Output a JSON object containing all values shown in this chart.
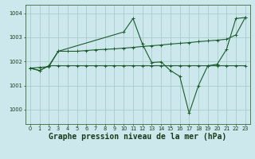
{
  "background_color": "#cce8ec",
  "grid_color": "#aacccc",
  "line_color": "#1a5c2a",
  "title": "Graphe pression niveau de la mer (hPa)",
  "title_fontsize": 7.0,
  "tick_fontsize": 4.8,
  "xlim": [
    -0.5,
    23.5
  ],
  "ylim": [
    999.4,
    1004.35
  ],
  "yticks": [
    1000,
    1001,
    1002,
    1003,
    1004
  ],
  "xticks": [
    0,
    1,
    2,
    3,
    4,
    5,
    6,
    7,
    8,
    9,
    10,
    11,
    12,
    13,
    14,
    15,
    16,
    17,
    18,
    19,
    20,
    21,
    22,
    23
  ],
  "line1_x": [
    0,
    1,
    2,
    3,
    4,
    5,
    6,
    7,
    8,
    9,
    10,
    11,
    12,
    13,
    14,
    15,
    16,
    17,
    18,
    19,
    20,
    21,
    22,
    23
  ],
  "line1_y": [
    1001.72,
    1001.62,
    1001.82,
    1001.82,
    1001.82,
    1001.82,
    1001.82,
    1001.82,
    1001.82,
    1001.82,
    1001.82,
    1001.82,
    1001.82,
    1001.82,
    1001.82,
    1001.82,
    1001.82,
    1001.82,
    1001.82,
    1001.82,
    1001.82,
    1001.82,
    1001.82,
    1001.82
  ],
  "line2_x": [
    0,
    1,
    2,
    3,
    4,
    5,
    6,
    7,
    8,
    9,
    10,
    11,
    12,
    13,
    14,
    15,
    16,
    17,
    18,
    19,
    20,
    21,
    22,
    23
  ],
  "line2_y": [
    1001.72,
    1001.75,
    1001.78,
    1002.42,
    1002.42,
    1002.42,
    1002.45,
    1002.48,
    1002.5,
    1002.52,
    1002.55,
    1002.58,
    1002.62,
    1002.65,
    1002.68,
    1002.72,
    1002.75,
    1002.78,
    1002.82,
    1002.85,
    1002.88,
    1002.92,
    1003.1,
    1003.82
  ],
  "line3_x": [
    0,
    1,
    2,
    3,
    10,
    11,
    12,
    13,
    14,
    15,
    16,
    17,
    18,
    19,
    20,
    21,
    22,
    23
  ],
  "line3_y": [
    1001.72,
    1001.62,
    1001.82,
    1002.42,
    1003.22,
    1003.78,
    1002.72,
    1001.95,
    1001.98,
    1001.62,
    1001.38,
    999.85,
    1001.0,
    1001.82,
    1001.88,
    1002.5,
    1003.78,
    1003.82
  ]
}
